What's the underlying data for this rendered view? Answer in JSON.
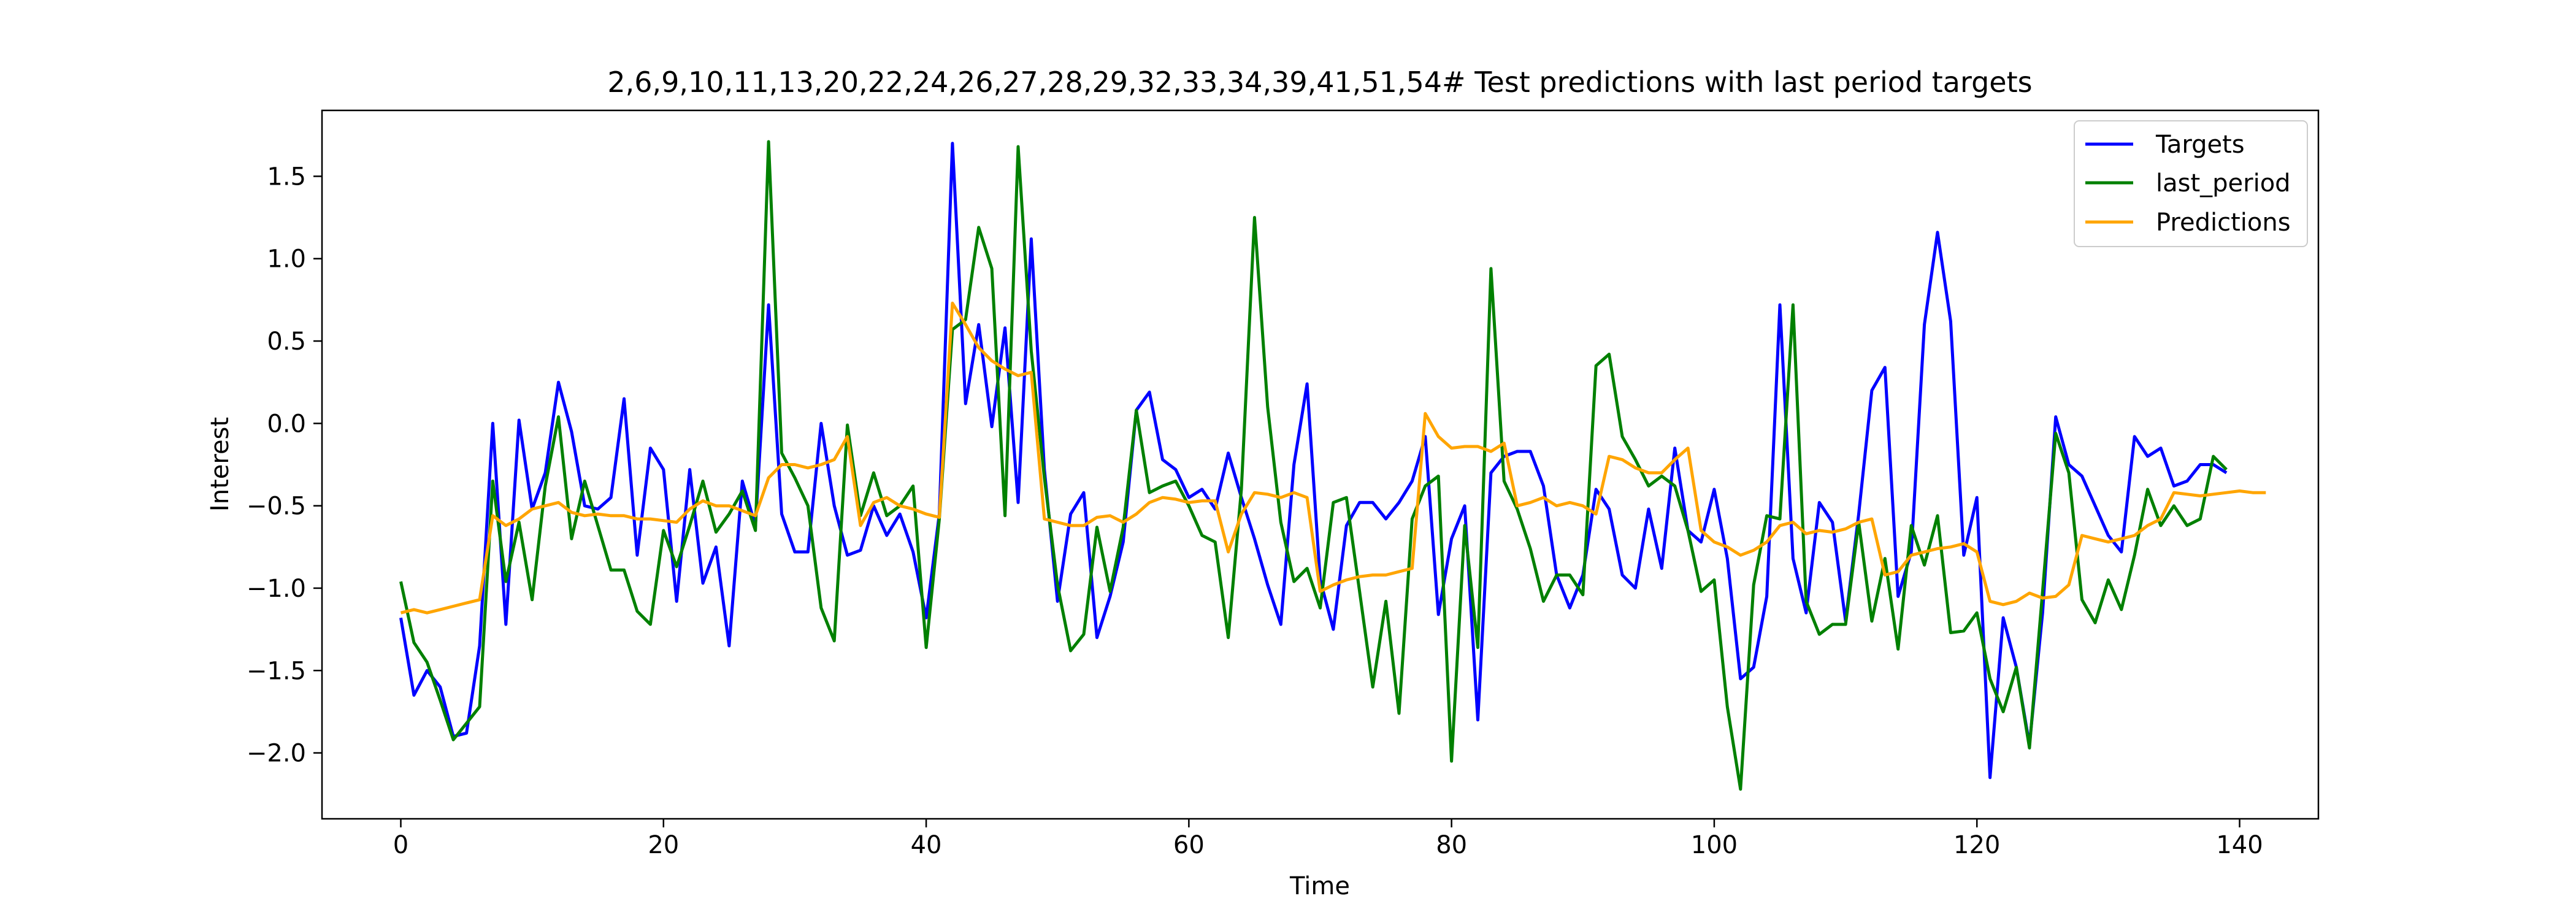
{
  "chart_data": {
    "type": "line",
    "title": "2,6,9,10,11,13,20,22,24,26,27,28,29,32,33,34,39,41,51,54# Test predictions with last period targets",
    "xlabel": "Time",
    "ylabel": "Interest",
    "xlim": [
      -6,
      146
    ],
    "ylim": [
      -2.4,
      1.9
    ],
    "xticks": [
      0,
      20,
      40,
      60,
      80,
      100,
      120,
      140
    ],
    "yticks": [
      -2.0,
      -1.5,
      -1.0,
      -0.5,
      0.0,
      0.5,
      1.0,
      1.5
    ],
    "xtick_labels": [
      "0",
      "20",
      "40",
      "60",
      "80",
      "100",
      "120",
      "140"
    ],
    "ytick_labels": [
      "−2.0",
      "−1.5",
      "−1.0",
      "−0.5",
      "0.0",
      "0.5",
      "1.0",
      "1.5"
    ],
    "legend_position": "top-right",
    "grid": false,
    "series": [
      {
        "name": "Targets",
        "color": "#0000ff",
        "values": [
          -1.18,
          -1.65,
          -1.5,
          -1.6,
          -1.9,
          -1.88,
          -1.35,
          0.0,
          -1.22,
          0.02,
          -0.52,
          -0.3,
          0.25,
          -0.05,
          -0.5,
          -0.52,
          -0.45,
          0.15,
          -0.8,
          -0.15,
          -0.28,
          -1.08,
          -0.28,
          -0.97,
          -0.75,
          -1.35,
          -0.35,
          -0.62,
          0.72,
          -0.55,
          -0.78,
          -0.78,
          0.0,
          -0.5,
          -0.8,
          -0.77,
          -0.5,
          -0.68,
          -0.55,
          -0.78,
          -1.18,
          -0.55,
          1.7,
          0.12,
          0.6,
          -0.02,
          0.58,
          -0.48,
          1.12,
          -0.28,
          -1.08,
          -0.55,
          -0.42,
          -1.3,
          -1.05,
          -0.72,
          0.08,
          0.19,
          -0.22,
          -0.28,
          -0.45,
          -0.4,
          -0.52,
          -0.18,
          -0.45,
          -0.7,
          -0.98,
          -1.22,
          -0.25,
          0.24,
          -0.95,
          -1.25,
          -0.62,
          -0.48,
          -0.48,
          -0.58,
          -0.48,
          -0.35,
          -0.08,
          -1.16,
          -0.7,
          -0.5,
          -1.8,
          -0.3,
          -0.2,
          -0.17,
          -0.17,
          -0.38,
          -0.92,
          -1.12,
          -0.92,
          -0.4,
          -0.52,
          -0.92,
          -1.0,
          -0.52,
          -0.88,
          -0.15,
          -0.65,
          -0.72,
          -0.4,
          -0.82,
          -1.55,
          -1.48,
          -1.05,
          0.72,
          -0.82,
          -1.15,
          -0.48,
          -0.6,
          -1.2,
          -0.55,
          0.2,
          0.34,
          -1.05,
          -0.78,
          0.6,
          1.16,
          0.62,
          -0.8,
          -0.45,
          -2.15,
          -1.18,
          -1.48,
          -1.95,
          -1.15,
          0.04,
          -0.25,
          -0.32,
          -0.5,
          -0.68,
          -0.78,
          -0.08,
          -0.2,
          -0.15,
          -0.38,
          -0.35,
          -0.25,
          -0.25,
          -0.3
        ]
      },
      {
        "name": "last_period",
        "color": "#008000",
        "values": [
          -0.96,
          -1.33,
          -1.45,
          -1.68,
          -1.92,
          -1.82,
          -1.72,
          -0.35,
          -0.96,
          -0.6,
          -1.07,
          -0.38,
          0.04,
          -0.7,
          -0.35,
          -0.62,
          -0.89,
          -0.89,
          -1.14,
          -1.22,
          -0.65,
          -0.87,
          -0.62,
          -0.35,
          -0.66,
          -0.55,
          -0.41,
          -0.65,
          1.71,
          -0.18,
          -0.33,
          -0.5,
          -1.12,
          -1.32,
          -0.01,
          -0.56,
          -0.3,
          -0.56,
          -0.5,
          -0.38,
          -1.36,
          -0.58,
          0.57,
          0.63,
          1.19,
          0.94,
          -0.56,
          1.68,
          0.44,
          -0.33,
          -0.98,
          -1.38,
          -1.28,
          -0.63,
          -1.02,
          -0.63,
          0.08,
          -0.42,
          -0.38,
          -0.35,
          -0.5,
          -0.68,
          -0.72,
          -1.3,
          -0.4,
          1.25,
          0.1,
          -0.6,
          -0.96,
          -0.88,
          -1.12,
          -0.48,
          -0.45,
          -1.02,
          -1.6,
          -1.08,
          -1.76,
          -0.58,
          -0.38,
          -0.32,
          -2.05,
          -0.62,
          -1.36,
          0.94,
          -0.35,
          -0.52,
          -0.76,
          -1.08,
          -0.92,
          -0.92,
          -1.04,
          0.35,
          0.42,
          -0.08,
          -0.22,
          -0.38,
          -0.32,
          -0.38,
          -0.65,
          -1.02,
          -0.95,
          -1.72,
          -2.22,
          -0.98,
          -0.56,
          -0.58,
          0.72,
          -1.08,
          -1.28,
          -1.22,
          -1.22,
          -0.6,
          -1.2,
          -0.82,
          -1.37,
          -0.62,
          -0.86,
          -0.56,
          -1.27,
          -1.26,
          -1.15,
          -1.55,
          -1.75,
          -1.48,
          -1.97,
          -1.02,
          -0.06,
          -0.3,
          -1.07,
          -1.21,
          -0.95,
          -1.13,
          -0.8,
          -0.4,
          -0.62,
          -0.5,
          -0.62,
          -0.58,
          -0.2,
          -0.28
        ]
      },
      {
        "name": "Predictions",
        "color": "#ffa500",
        "values": [
          -1.15,
          -1.13,
          -1.15,
          -1.13,
          -1.11,
          -1.09,
          -1.07,
          -0.56,
          -0.62,
          -0.58,
          -0.52,
          -0.5,
          -0.48,
          -0.54,
          -0.56,
          -0.55,
          -0.56,
          -0.56,
          -0.58,
          -0.58,
          -0.59,
          -0.6,
          -0.52,
          -0.47,
          -0.5,
          -0.5,
          -0.53,
          -0.56,
          -0.33,
          -0.25,
          -0.25,
          -0.27,
          -0.25,
          -0.22,
          -0.08,
          -0.62,
          -0.48,
          -0.45,
          -0.5,
          -0.52,
          -0.55,
          -0.57,
          0.73,
          0.6,
          0.46,
          0.38,
          0.33,
          0.29,
          0.31,
          -0.58,
          -0.6,
          -0.62,
          -0.62,
          -0.57,
          -0.56,
          -0.6,
          -0.55,
          -0.48,
          -0.45,
          -0.46,
          -0.48,
          -0.47,
          -0.47,
          -0.78,
          -0.55,
          -0.42,
          -0.43,
          -0.45,
          -0.42,
          -0.45,
          -1.02,
          -0.98,
          -0.95,
          -0.93,
          -0.92,
          -0.92,
          -0.9,
          -0.88,
          0.06,
          -0.08,
          -0.15,
          -0.14,
          -0.14,
          -0.17,
          -0.12,
          -0.5,
          -0.48,
          -0.45,
          -0.5,
          -0.48,
          -0.5,
          -0.55,
          -0.2,
          -0.22,
          -0.27,
          -0.3,
          -0.3,
          -0.22,
          -0.15,
          -0.65,
          -0.72,
          -0.75,
          -0.8,
          -0.77,
          -0.72,
          -0.62,
          -0.6,
          -0.67,
          -0.65,
          -0.66,
          -0.64,
          -0.6,
          -0.58,
          -0.92,
          -0.9,
          -0.8,
          -0.78,
          -0.76,
          -0.75,
          -0.73,
          -0.78,
          -1.08,
          -1.1,
          -1.08,
          -1.03,
          -1.06,
          -1.05,
          -0.98,
          -0.68,
          -0.7,
          -0.72,
          -0.7,
          -0.68,
          -0.62,
          -0.58,
          -0.42,
          -0.43,
          -0.44,
          -0.43,
          -0.42,
          -0.41,
          -0.42,
          -0.42
        ]
      }
    ]
  }
}
